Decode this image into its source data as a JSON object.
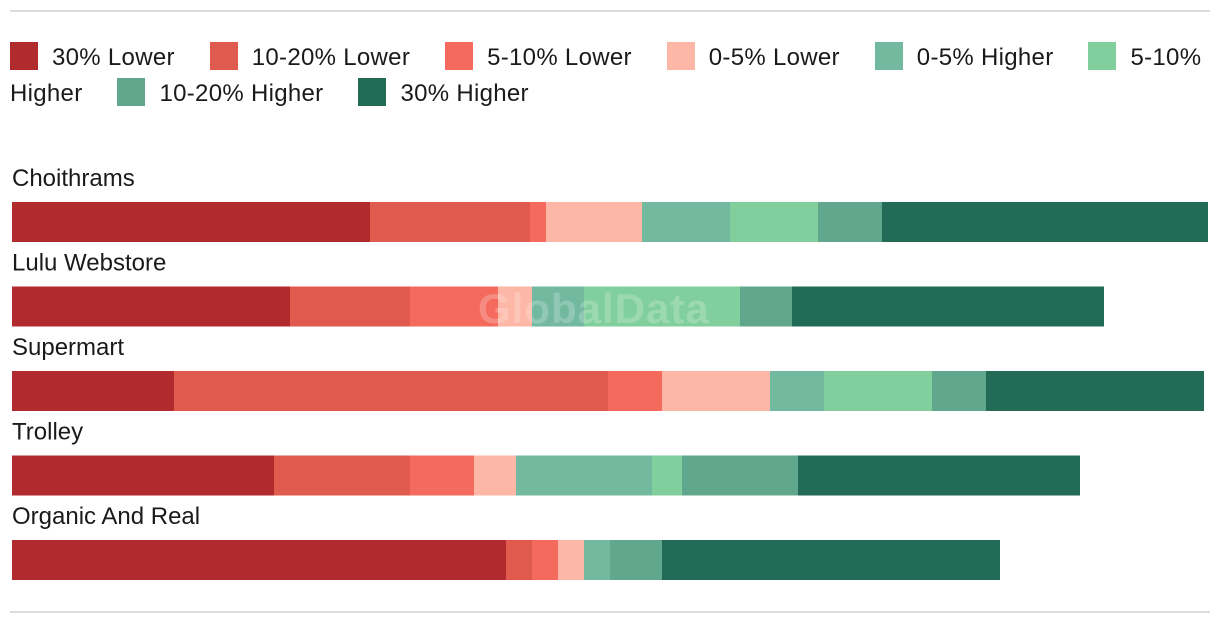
{
  "watermark": "GlobalData",
  "chart_data": {
    "type": "bar",
    "orientation": "horizontal",
    "stacked": true,
    "legend_position": "top",
    "grid": false,
    "categories": [
      "Choithrams",
      "Lulu Webstore",
      "Supermart",
      "Trolley",
      "Organic And Real"
    ],
    "series": [
      {
        "name": "30% Lower",
        "color": "#b02a2e",
        "values": [
          358,
          278,
          162,
          262,
          494
        ]
      },
      {
        "name": "10-20% Lower",
        "color": "#e05a4e",
        "values": [
          160,
          120,
          434,
          136,
          26
        ]
      },
      {
        "name": "5-10% Lower",
        "color": "#f46b5e",
        "values": [
          16,
          88,
          54,
          64,
          26
        ]
      },
      {
        "name": "0-5% Lower",
        "color": "#fdb7a6",
        "values": [
          96,
          34,
          108,
          42,
          26
        ]
      },
      {
        "name": "0-5% Higher",
        "color": "#72b9a0",
        "values": [
          88,
          52,
          54,
          136,
          26
        ]
      },
      {
        "name": "5-10% Higher",
        "color": "#80cf9c",
        "values": [
          88,
          156,
          108,
          30,
          0
        ]
      },
      {
        "name": "10-20% Higher",
        "color": "#60a78e",
        "values": [
          64,
          52,
          54,
          116,
          52
        ]
      },
      {
        "name": "30% Higher",
        "color": "#226b57",
        "values": [
          326,
          312,
          218,
          282,
          338
        ]
      }
    ]
  }
}
